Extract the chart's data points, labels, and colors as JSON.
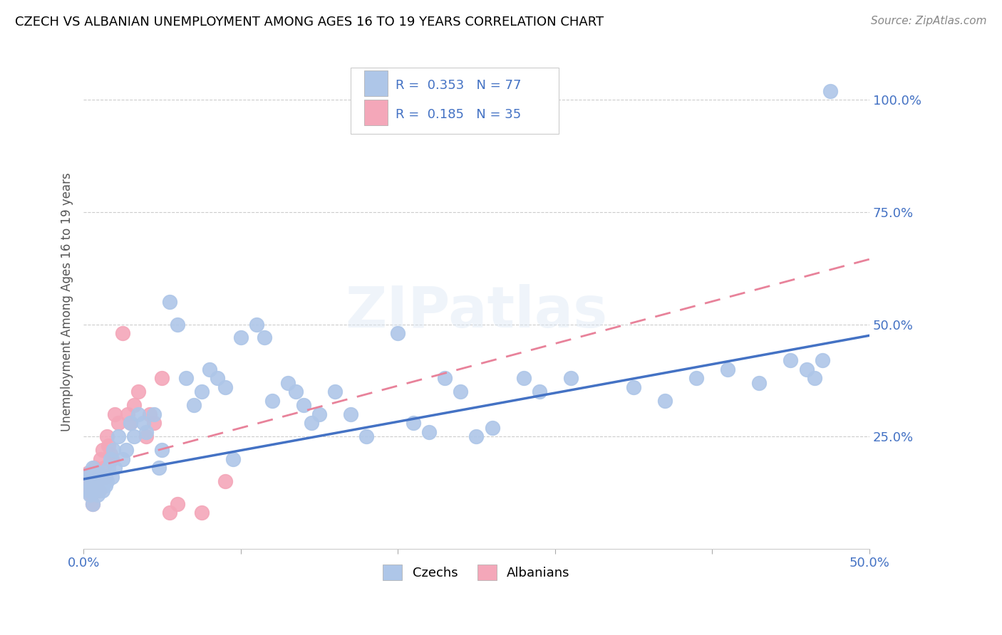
{
  "title": "CZECH VS ALBANIAN UNEMPLOYMENT AMONG AGES 16 TO 19 YEARS CORRELATION CHART",
  "source": "Source: ZipAtlas.com",
  "ylabel": "Unemployment Among Ages 16 to 19 years",
  "xlim": [
    0.0,
    0.5
  ],
  "ylim": [
    0.0,
    1.1
  ],
  "czech_color": "#aec6e8",
  "albanian_color": "#f4a7b9",
  "czech_line_color": "#4472c4",
  "albanian_line_color": "#e8829a",
  "czech_R": 0.353,
  "czech_N": 77,
  "albanian_R": 0.185,
  "albanian_N": 35,
  "watermark": "ZIPatlas",
  "legend_labels": [
    "Czechs",
    "Albanians"
  ],
  "czechs_x": [
    0.002,
    0.003,
    0.004,
    0.004,
    0.005,
    0.005,
    0.006,
    0.006,
    0.007,
    0.007,
    0.008,
    0.008,
    0.009,
    0.01,
    0.01,
    0.011,
    0.012,
    0.013,
    0.014,
    0.015,
    0.016,
    0.017,
    0.018,
    0.019,
    0.02,
    0.022,
    0.025,
    0.027,
    0.03,
    0.032,
    0.035,
    0.038,
    0.04,
    0.045,
    0.048,
    0.05,
    0.055,
    0.06,
    0.065,
    0.07,
    0.075,
    0.08,
    0.085,
    0.09,
    0.095,
    0.1,
    0.11,
    0.115,
    0.12,
    0.13,
    0.135,
    0.14,
    0.145,
    0.15,
    0.16,
    0.17,
    0.18,
    0.2,
    0.21,
    0.22,
    0.23,
    0.24,
    0.25,
    0.26,
    0.28,
    0.29,
    0.31,
    0.35,
    0.37,
    0.39,
    0.41,
    0.43,
    0.45,
    0.46,
    0.465,
    0.47,
    0.475
  ],
  "czechs_y": [
    0.15,
    0.13,
    0.17,
    0.12,
    0.14,
    0.16,
    0.1,
    0.18,
    0.15,
    0.14,
    0.13,
    0.16,
    0.12,
    0.15,
    0.17,
    0.14,
    0.13,
    0.16,
    0.14,
    0.15,
    0.18,
    0.2,
    0.16,
    0.22,
    0.18,
    0.25,
    0.2,
    0.22,
    0.28,
    0.25,
    0.3,
    0.28,
    0.26,
    0.3,
    0.18,
    0.22,
    0.55,
    0.5,
    0.38,
    0.32,
    0.35,
    0.4,
    0.38,
    0.36,
    0.2,
    0.47,
    0.5,
    0.47,
    0.33,
    0.37,
    0.35,
    0.32,
    0.28,
    0.3,
    0.35,
    0.3,
    0.25,
    0.48,
    0.28,
    0.26,
    0.38,
    0.35,
    0.25,
    0.27,
    0.38,
    0.35,
    0.38,
    0.36,
    0.33,
    0.38,
    0.4,
    0.37,
    0.42,
    0.4,
    0.38,
    0.42,
    1.02
  ],
  "albanians_x": [
    0.001,
    0.002,
    0.003,
    0.003,
    0.004,
    0.005,
    0.006,
    0.006,
    0.007,
    0.008,
    0.009,
    0.01,
    0.011,
    0.012,
    0.013,
    0.014,
    0.015,
    0.016,
    0.017,
    0.018,
    0.02,
    0.022,
    0.025,
    0.028,
    0.03,
    0.032,
    0.035,
    0.04,
    0.042,
    0.045,
    0.05,
    0.055,
    0.06,
    0.075,
    0.09
  ],
  "albanians_y": [
    0.15,
    0.14,
    0.13,
    0.17,
    0.16,
    0.12,
    0.14,
    0.1,
    0.18,
    0.15,
    0.16,
    0.13,
    0.2,
    0.22,
    0.18,
    0.16,
    0.25,
    0.23,
    0.21,
    0.2,
    0.3,
    0.28,
    0.48,
    0.3,
    0.28,
    0.32,
    0.35,
    0.25,
    0.3,
    0.28,
    0.38,
    0.08,
    0.1,
    0.08,
    0.15
  ],
  "czech_line_x0": 0.0,
  "czech_line_y0": 0.155,
  "czech_line_x1": 0.5,
  "czech_line_y1": 0.475,
  "albanian_line_x0": 0.0,
  "albanian_line_y0": 0.175,
  "albanian_line_x1": 0.5,
  "albanian_line_y1": 0.645
}
